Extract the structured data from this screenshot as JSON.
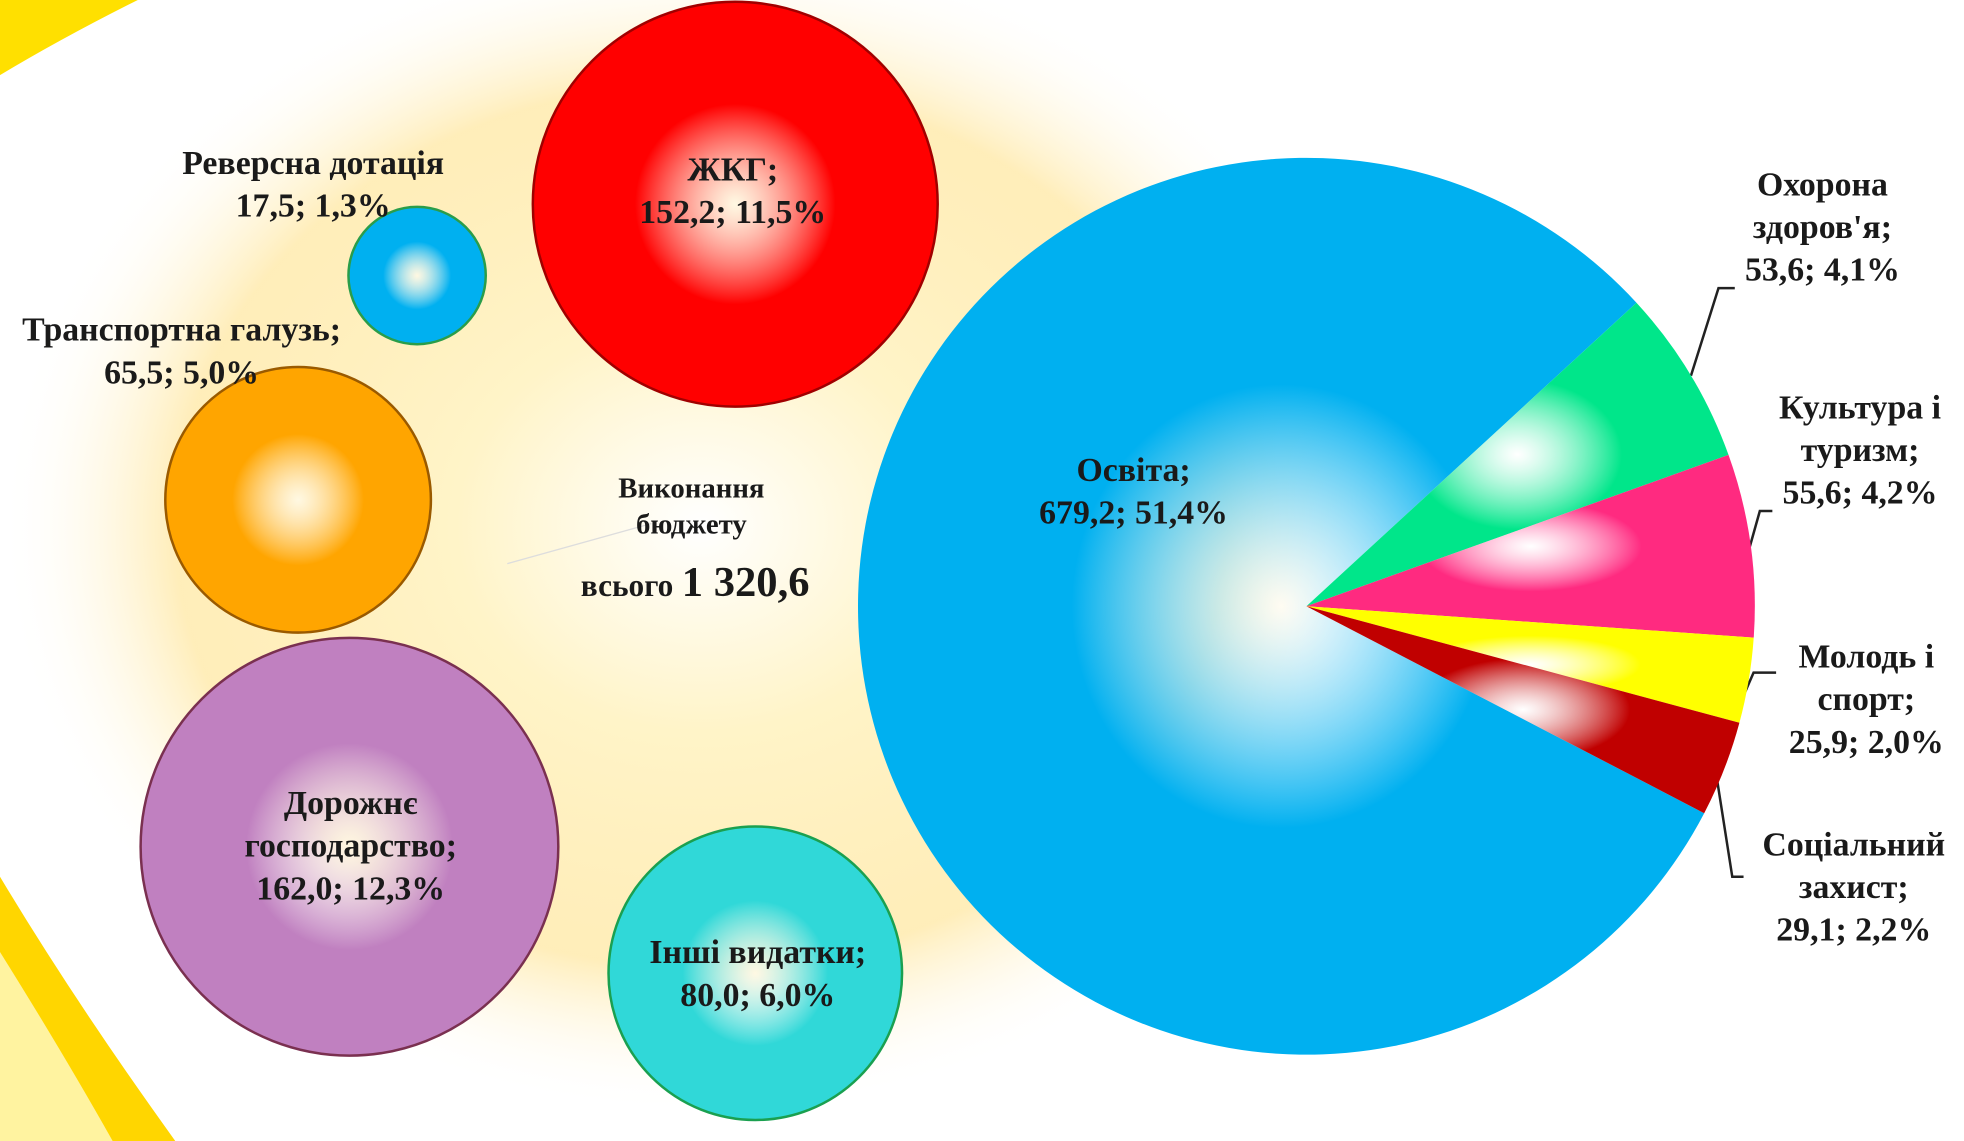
{
  "chart_data": [
    {
      "type": "pie",
      "categories": [
        "Освіта;",
        "Охорона здоров'я;",
        "Культура і туризм;",
        "Молодь і спорт;",
        "Соціальний захист;"
      ],
      "values": [
        679.2,
        53.6,
        55.6,
        25.9,
        29.1
      ],
      "value_labels": [
        "679,2;",
        "53,6;",
        "55,6;",
        "25,9;",
        "29,1;"
      ],
      "percents": [
        51.4,
        4.1,
        4.2,
        2.0,
        2.2
      ],
      "percent_labels": [
        "51,4%",
        "4,1%",
        "4,2%",
        "2,0%",
        "2,2%"
      ],
      "colors": [
        "#00b0f0",
        "#00e68a",
        "#ff2a80",
        "#ffff00",
        "#c00000"
      ]
    },
    {
      "type": "bubble",
      "categories": [
        "ЖКГ;",
        "Реверсна дотація",
        "Транспортна галузь;",
        "Дорожнє господарство;",
        "Інші видатки;"
      ],
      "values": [
        152.2,
        17.5,
        65.5,
        162.0,
        80.0
      ],
      "value_labels": [
        "152,2;",
        "17,5;",
        "65,5;",
        "162,0;",
        "80,0;"
      ],
      "percents": [
        11.5,
        1.3,
        5.0,
        12.3,
        6.0
      ],
      "percent_labels": [
        "11,5%",
        "1,3%",
        "5,0%",
        "12,3%",
        "6,0%"
      ],
      "colors": [
        "#ff0000",
        "#00b0f0",
        "#ffa500",
        "#c080c0",
        "#30d8d8"
      ]
    }
  ],
  "total": {
    "caption": "Виконання бюджету",
    "prefix": "всього",
    "value": 1320.6,
    "value_label": "1 320,6"
  }
}
